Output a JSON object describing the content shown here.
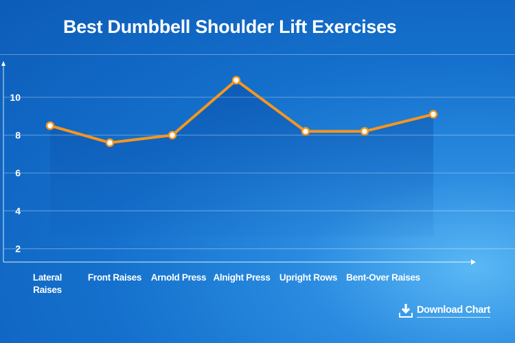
{
  "chart_data": {
    "type": "line",
    "title": "Best Dumbbell Shoulder Lift Exercises",
    "categories": [
      "Lateral Raises",
      "Front Raises",
      "Arnold Press",
      "Alnight Press",
      "Upright Rows",
      "Bent-Over Raises",
      ""
    ],
    "values": [
      8.5,
      7.6,
      8.0,
      10.9,
      8.2,
      8.2,
      9.1
    ],
    "yticks": [
      2,
      4,
      6,
      8,
      10
    ],
    "ylim": [
      1.3,
      11.5
    ],
    "grid": true,
    "area_fill": true,
    "colors": {
      "line": "#f5961e",
      "marker_fill": "#ffffff",
      "background": "#1470cc"
    }
  },
  "toolbar": {
    "download_label": "Download Chart",
    "download_icon": "download-icon"
  }
}
